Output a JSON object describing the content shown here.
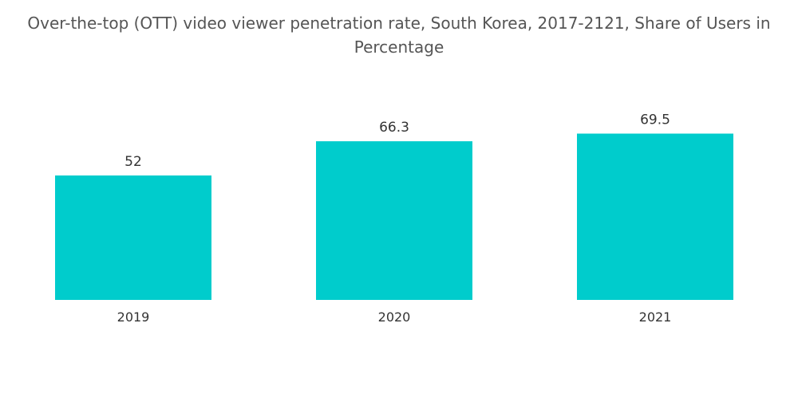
{
  "chart_data": {
    "type": "bar",
    "title": "Over-the-top (OTT) video viewer penetration rate, South Korea, 2017-2121, Share of Users in Percentage",
    "categories": [
      "2019",
      "2020",
      "2021"
    ],
    "values": [
      52,
      66.3,
      69.5
    ],
    "value_labels": [
      "52",
      "66.3",
      "69.5"
    ],
    "xlabel": "",
    "ylabel": "",
    "ylim": [
      0,
      80
    ],
    "grid": false,
    "legend": "none",
    "bar_color": "#00CCCC"
  }
}
